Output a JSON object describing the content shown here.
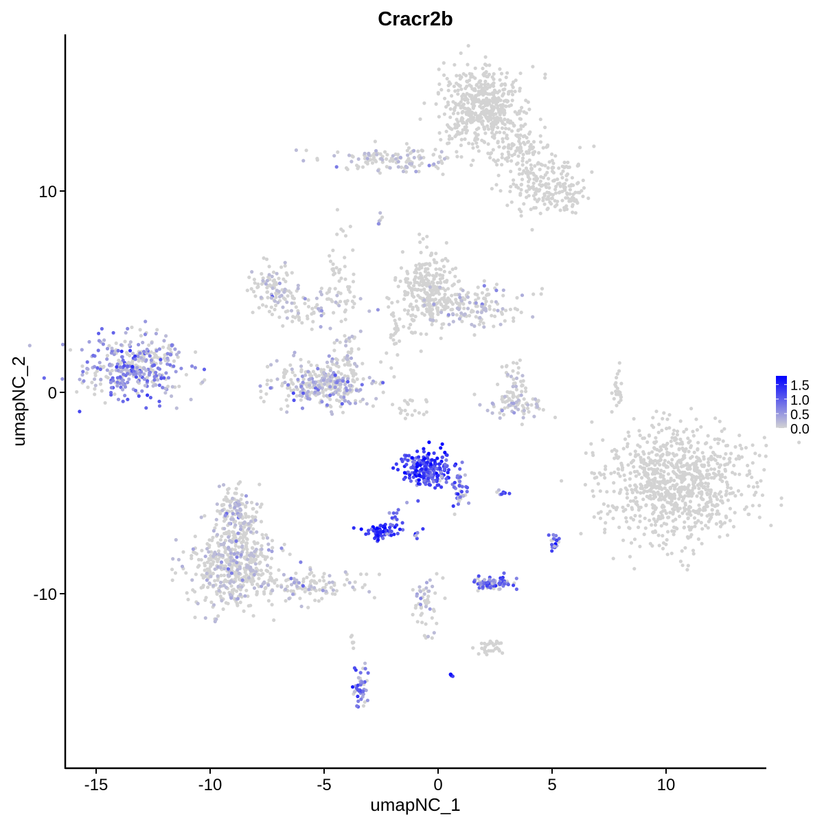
{
  "chart_data": {
    "type": "scatter",
    "title": "Cracr2b",
    "xlabel": "umapNC_1",
    "ylabel": "umapNC_2",
    "xlim": [
      -16.3,
      14.4
    ],
    "ylim": [
      -18.6,
      17.9
    ],
    "xticks": [
      -15,
      -10,
      -5,
      0,
      5,
      10
    ],
    "yticks": [
      -10,
      0,
      10
    ],
    "xtick_labels": [
      "-15",
      "-10",
      "-5",
      "0",
      "5",
      "10"
    ],
    "ytick_labels": [
      "-10",
      "0",
      "10"
    ],
    "grid": false,
    "color_low": "#D3D3D3",
    "color_high": "#0000FF",
    "legend": {
      "position": "right",
      "range": [
        0,
        1.8
      ],
      "ticks": [
        0,
        0.5,
        1.0,
        1.5
      ],
      "tick_labels": [
        "0.0",
        "0.5",
        "1.0",
        "1.5"
      ]
    },
    "note": "point clouds approximated as clusters (center, spread in data units, count, mean expression)",
    "clusters": [
      {
        "cx": -13.3,
        "cy": 1.2,
        "sx": 1.1,
        "sy": 0.8,
        "n": 350,
        "expr": 0.6
      },
      {
        "cx": -12.0,
        "cy": 2.0,
        "sx": 0.3,
        "sy": 0.4,
        "n": 25,
        "expr": 0.4
      },
      {
        "cx": 1.9,
        "cy": 14.2,
        "sx": 0.9,
        "sy": 1.0,
        "n": 500,
        "expr": 0.0
      },
      {
        "cx": 3.6,
        "cy": 12.2,
        "sx": 0.6,
        "sy": 0.6,
        "n": 80,
        "expr": 0.0
      },
      {
        "cx": 4.6,
        "cy": 10.3,
        "sx": 0.9,
        "sy": 0.8,
        "n": 180,
        "expr": 0.0
      },
      {
        "cx": 5.8,
        "cy": 9.7,
        "sx": 0.3,
        "sy": 0.4,
        "n": 40,
        "expr": 0.0
      },
      {
        "cx": -1.9,
        "cy": 11.6,
        "sx": 1.5,
        "sy": 0.3,
        "n": 130,
        "expr": 0.02
      },
      {
        "cx": -2.6,
        "cy": 8.6,
        "sx": 0.1,
        "sy": 0.15,
        "n": 6,
        "expr": 0.4
      },
      {
        "cx": -0.5,
        "cy": 5.0,
        "sx": 0.6,
        "sy": 1.0,
        "n": 280,
        "expr": 0.0
      },
      {
        "cx": 1.5,
        "cy": 4.3,
        "sx": 1.1,
        "sy": 0.5,
        "n": 160,
        "expr": 0.02
      },
      {
        "cx": -1.8,
        "cy": 3.0,
        "sx": 0.4,
        "sy": 1.0,
        "n": 25,
        "expr": 0.0
      },
      {
        "cx": -7.2,
        "cy": 5.3,
        "sx": 0.5,
        "sy": 0.6,
        "n": 90,
        "expr": 0.02
      },
      {
        "cx": -5.6,
        "cy": 4.2,
        "sx": 1.1,
        "sy": 0.5,
        "n": 70,
        "expr": 0.02
      },
      {
        "cx": -4.3,
        "cy": 5.6,
        "sx": 0.3,
        "sy": 1.6,
        "n": 50,
        "expr": 0.0
      },
      {
        "cx": -5.1,
        "cy": 0.4,
        "sx": 1.1,
        "sy": 0.55,
        "n": 320,
        "expr": 0.3
      },
      {
        "cx": -3.9,
        "cy": 1.6,
        "sx": 0.3,
        "sy": 0.6,
        "n": 50,
        "expr": 0.05
      },
      {
        "cx": 3.4,
        "cy": -0.6,
        "sx": 0.6,
        "sy": 0.3,
        "n": 80,
        "expr": 0.05
      },
      {
        "cx": 3.3,
        "cy": 0.7,
        "sx": 0.3,
        "sy": 0.5,
        "n": 30,
        "expr": 0.1
      },
      {
        "cx": -1.3,
        "cy": -0.7,
        "sx": 0.4,
        "sy": 0.25,
        "n": 20,
        "expr": 0.0
      },
      {
        "cx": 10.4,
        "cy": -4.5,
        "sx": 1.6,
        "sy": 1.4,
        "n": 900,
        "expr": 0.0
      },
      {
        "cx": -9.0,
        "cy": -8.6,
        "sx": 0.9,
        "sy": 1.0,
        "n": 480,
        "expr": 0.05
      },
      {
        "cx": -8.8,
        "cy": -6.0,
        "sx": 0.5,
        "sy": 0.7,
        "n": 150,
        "expr": 0.05
      },
      {
        "cx": -5.6,
        "cy": -9.6,
        "sx": 1.3,
        "sy": 0.4,
        "n": 130,
        "expr": 0.02
      },
      {
        "cx": -0.5,
        "cy": -3.8,
        "sx": 0.55,
        "sy": 0.45,
        "n": 220,
        "expr": 1.2
      },
      {
        "cx": 0.9,
        "cy": -4.8,
        "sx": 0.25,
        "sy": 0.4,
        "n": 40,
        "expr": 0.8
      },
      {
        "cx": -2.5,
        "cy": -6.9,
        "sx": 0.35,
        "sy": 0.18,
        "n": 70,
        "expr": 1.35
      },
      {
        "cx": -1.8,
        "cy": -6.0,
        "sx": 0.2,
        "sy": 0.3,
        "n": 10,
        "expr": 1.0
      },
      {
        "cx": 2.4,
        "cy": -9.5,
        "sx": 0.5,
        "sy": 0.15,
        "n": 90,
        "expr": 0.8
      },
      {
        "cx": -3.4,
        "cy": -14.6,
        "sx": 0.18,
        "sy": 0.5,
        "n": 45,
        "expr": 0.8
      },
      {
        "cx": -0.5,
        "cy": -10.6,
        "sx": 0.3,
        "sy": 0.9,
        "n": 50,
        "expr": 0.1
      },
      {
        "cx": 2.3,
        "cy": -12.6,
        "sx": 0.35,
        "sy": 0.2,
        "n": 30,
        "expr": 0.0
      },
      {
        "cx": 0.6,
        "cy": -14.05,
        "sx": 0.05,
        "sy": 0.05,
        "n": 6,
        "expr": 1.8
      },
      {
        "cx": 5.1,
        "cy": -7.4,
        "sx": 0.12,
        "sy": 0.3,
        "n": 18,
        "expr": 1.0
      },
      {
        "cx": 2.9,
        "cy": -5.0,
        "sx": 0.15,
        "sy": 0.08,
        "n": 8,
        "expr": 0.9
      },
      {
        "cx": -0.9,
        "cy": -7.1,
        "sx": 0.1,
        "sy": 0.15,
        "n": 6,
        "expr": 1.0
      },
      {
        "cx": 7.9,
        "cy": 0.2,
        "sx": 0.1,
        "sy": 0.6,
        "n": 22,
        "expr": 0.0
      },
      {
        "cx": -3.7,
        "cy": -12.4,
        "sx": 0.08,
        "sy": 0.3,
        "n": 6,
        "expr": 0.0
      }
    ]
  }
}
